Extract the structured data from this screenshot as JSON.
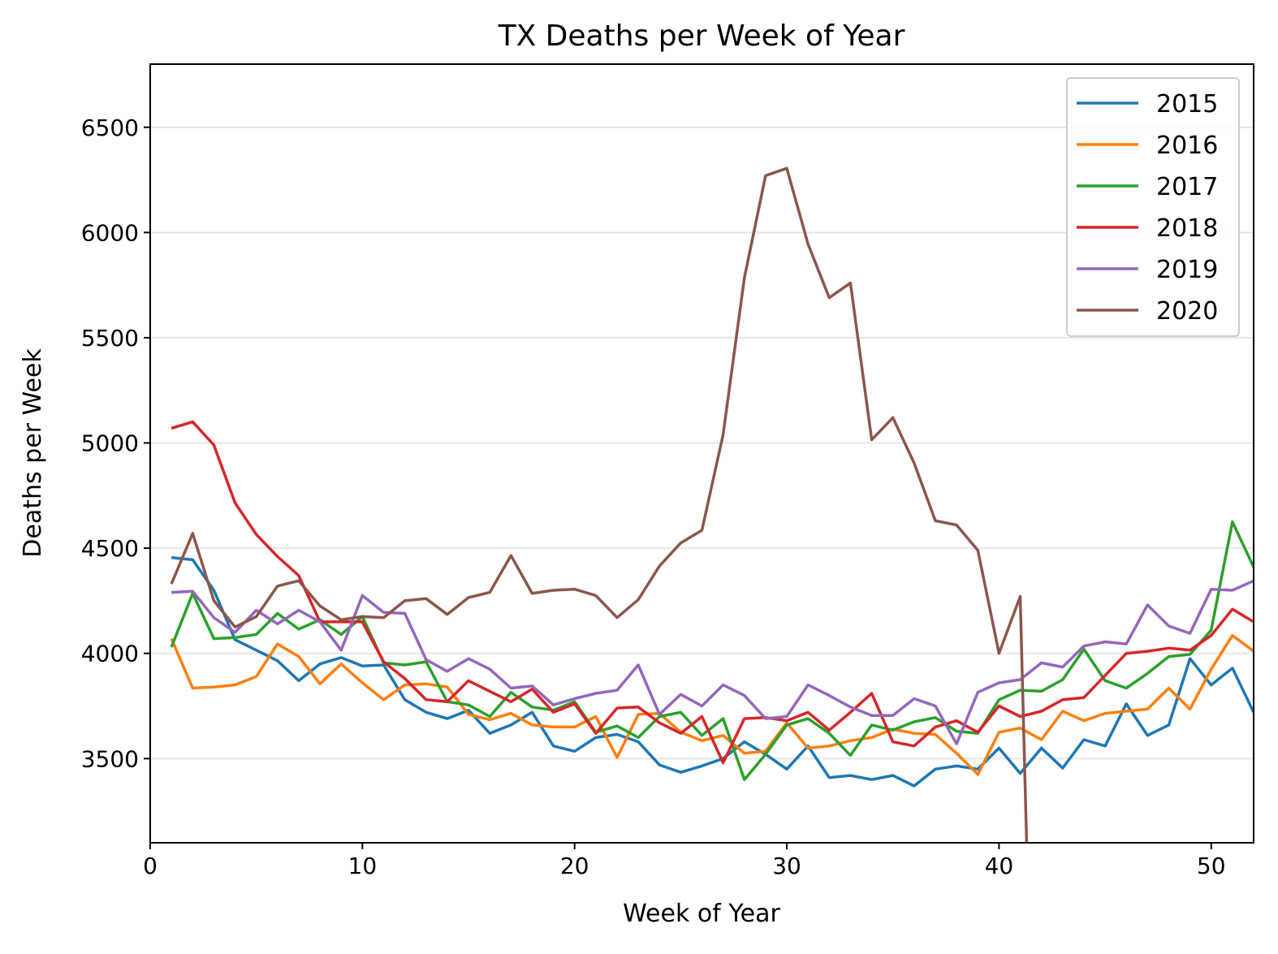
{
  "chart_data": {
    "type": "line",
    "title": "TX Deaths per Week of Year",
    "xlabel": "Week of Year",
    "ylabel": "Deaths per Week",
    "xlim": [
      0,
      52
    ],
    "ylim": [
      3100,
      6800
    ],
    "xticks": [
      0,
      10,
      20,
      30,
      40,
      50
    ],
    "yticks": [
      3500,
      4000,
      4500,
      5000,
      5500,
      6000,
      6500
    ],
    "grid": "horizontal",
    "legend_position": "top-right",
    "series": [
      {
        "name": "2015",
        "color": "#1f77b4",
        "x": [
          1,
          2,
          3,
          4,
          5,
          6,
          7,
          8,
          9,
          10,
          11,
          12,
          13,
          14,
          15,
          16,
          17,
          18,
          19,
          20,
          21,
          22,
          23,
          24,
          25,
          26,
          27,
          28,
          29,
          30,
          31,
          32,
          33,
          34,
          35,
          36,
          37,
          38,
          39,
          40,
          41,
          42,
          43,
          44,
          45,
          46,
          47,
          48,
          49,
          50,
          51,
          52
        ],
        "values": [
          4455,
          4445,
          4300,
          4065,
          4015,
          3965,
          3870,
          3950,
          3980,
          3940,
          3945,
          3780,
          3720,
          3690,
          3730,
          3620,
          3660,
          3720,
          3560,
          3535,
          3600,
          3615,
          3580,
          3470,
          3435,
          3465,
          3500,
          3580,
          3520,
          3450,
          3560,
          3410,
          3420,
          3400,
          3420,
          3370,
          3450,
          3465,
          3450,
          3550,
          3430,
          3550,
          3455,
          3590,
          3560,
          3760,
          3610,
          3660,
          3975,
          3850,
          3930,
          3720
        ]
      },
      {
        "name": "2016",
        "color": "#ff7f0e",
        "x": [
          1,
          2,
          3,
          4,
          5,
          6,
          7,
          8,
          9,
          10,
          11,
          12,
          13,
          14,
          15,
          16,
          17,
          18,
          19,
          20,
          21,
          22,
          23,
          24,
          25,
          26,
          27,
          28,
          29,
          30,
          31,
          32,
          33,
          34,
          35,
          36,
          37,
          38,
          39,
          40,
          41,
          42,
          43,
          44,
          45,
          46,
          47,
          48,
          49,
          50,
          51,
          52
        ],
        "values": [
          4070,
          3835,
          3840,
          3850,
          3890,
          4045,
          3985,
          3855,
          3950,
          3860,
          3780,
          3850,
          3855,
          3840,
          3710,
          3685,
          3715,
          3660,
          3650,
          3650,
          3700,
          3505,
          3710,
          3715,
          3625,
          3585,
          3610,
          3525,
          3535,
          3670,
          3550,
          3560,
          3585,
          3600,
          3640,
          3620,
          3615,
          3525,
          3425,
          3625,
          3645,
          3590,
          3725,
          3680,
          3715,
          3725,
          3735,
          3835,
          3735,
          3925,
          4085,
          4010
        ]
      },
      {
        "name": "2017",
        "color": "#2ca02c",
        "x": [
          1,
          2,
          3,
          4,
          5,
          6,
          7,
          8,
          9,
          10,
          11,
          12,
          13,
          14,
          15,
          16,
          17,
          18,
          19,
          20,
          21,
          22,
          23,
          24,
          25,
          26,
          27,
          28,
          29,
          30,
          31,
          32,
          33,
          34,
          35,
          36,
          37,
          38,
          39,
          40,
          41,
          42,
          43,
          44,
          45,
          46,
          47,
          48,
          49,
          50,
          51,
          52
        ],
        "values": [
          4030,
          4285,
          4070,
          4075,
          4090,
          4190,
          4115,
          4160,
          4090,
          4175,
          3955,
          3945,
          3960,
          3770,
          3755,
          3700,
          3815,
          3745,
          3730,
          3770,
          3625,
          3655,
          3600,
          3700,
          3720,
          3610,
          3690,
          3400,
          3520,
          3660,
          3690,
          3620,
          3515,
          3660,
          3635,
          3675,
          3695,
          3630,
          3620,
          3780,
          3825,
          3820,
          3875,
          4020,
          3870,
          3835,
          3905,
          3985,
          3995,
          4110,
          4625,
          4410
        ]
      },
      {
        "name": "2018",
        "color": "#d62728",
        "x": [
          1,
          2,
          3,
          4,
          5,
          6,
          7,
          8,
          9,
          10,
          11,
          12,
          13,
          14,
          15,
          16,
          17,
          18,
          19,
          20,
          21,
          22,
          23,
          24,
          25,
          26,
          27,
          28,
          29,
          30,
          31,
          32,
          33,
          34,
          35,
          36,
          37,
          38,
          39,
          40,
          41,
          42,
          43,
          44,
          45,
          46,
          47,
          48,
          49,
          50,
          51,
          52
        ],
        "values": [
          5070,
          5100,
          4990,
          4715,
          4565,
          4460,
          4370,
          4150,
          4150,
          4150,
          3960,
          3880,
          3780,
          3770,
          3870,
          3820,
          3770,
          3830,
          3720,
          3760,
          3620,
          3740,
          3745,
          3670,
          3620,
          3700,
          3480,
          3690,
          3695,
          3680,
          3720,
          3635,
          3720,
          3810,
          3580,
          3560,
          3650,
          3680,
          3625,
          3750,
          3700,
          3725,
          3780,
          3790,
          3895,
          4000,
          4010,
          4025,
          4015,
          4085,
          4210,
          4150
        ]
      },
      {
        "name": "2019",
        "color": "#9467bd",
        "x": [
          1,
          2,
          3,
          4,
          5,
          6,
          7,
          8,
          9,
          10,
          11,
          12,
          13,
          14,
          15,
          16,
          17,
          18,
          19,
          20,
          21,
          22,
          23,
          24,
          25,
          26,
          27,
          28,
          29,
          30,
          31,
          32,
          33,
          34,
          35,
          36,
          37,
          38,
          39,
          40,
          41,
          42,
          43,
          44,
          45,
          46,
          47,
          48,
          49,
          50,
          51,
          52
        ],
        "values": [
          4290,
          4295,
          4170,
          4100,
          4205,
          4140,
          4205,
          4150,
          4015,
          4275,
          4195,
          4190,
          3970,
          3915,
          3975,
          3925,
          3835,
          3845,
          3755,
          3785,
          3810,
          3825,
          3945,
          3710,
          3805,
          3750,
          3850,
          3800,
          3690,
          3700,
          3850,
          3800,
          3745,
          3705,
          3705,
          3785,
          3750,
          3570,
          3815,
          3860,
          3875,
          3955,
          3935,
          4035,
          4055,
          4045,
          4230,
          4130,
          4095,
          4305,
          4300,
          4345
        ]
      },
      {
        "name": "2020",
        "color": "#8c564b",
        "x": [
          1,
          2,
          3,
          4,
          5,
          6,
          7,
          8,
          9,
          10,
          11,
          12,
          13,
          14,
          15,
          16,
          17,
          18,
          19,
          20,
          21,
          22,
          23,
          24,
          25,
          26,
          27,
          28,
          29,
          30,
          31,
          32,
          33,
          34,
          35,
          36,
          37,
          38,
          39,
          40,
          41,
          41.3
        ],
        "values": [
          4330,
          4570,
          4250,
          4125,
          4175,
          4320,
          4345,
          4225,
          4160,
          4175,
          4170,
          4250,
          4260,
          4185,
          4265,
          4290,
          4465,
          4285,
          4300,
          4305,
          4275,
          4170,
          4255,
          4415,
          4525,
          4585,
          5040,
          5785,
          6270,
          6305,
          5945,
          5690,
          5760,
          5015,
          5120,
          4905,
          4630,
          4610,
          4490,
          4000,
          4270,
          3100
        ]
      }
    ]
  }
}
